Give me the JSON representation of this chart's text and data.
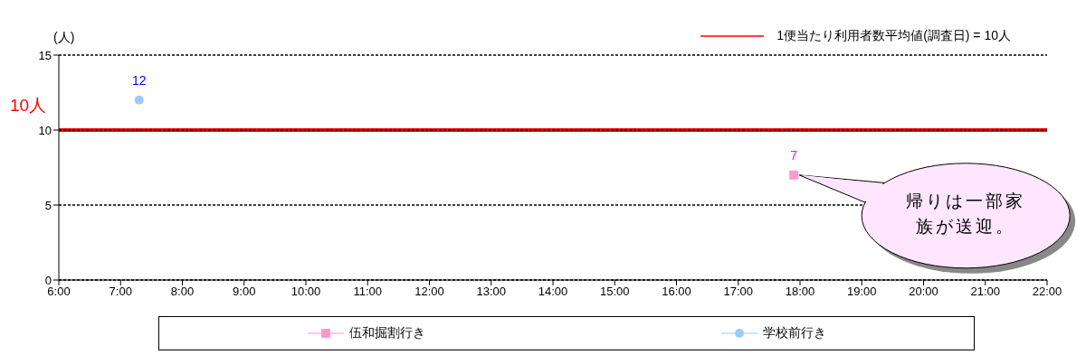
{
  "chart_data": {
    "type": "scatter",
    "ylabel": "(人)",
    "xlim": [
      6,
      22
    ],
    "xticks": [
      {
        "value": 6,
        "label": "6:00"
      },
      {
        "value": 7,
        "label": "7:00"
      },
      {
        "value": 8,
        "label": "8:00"
      },
      {
        "value": 9,
        "label": "9:00"
      },
      {
        "value": 10,
        "label": "10:00"
      },
      {
        "value": 11,
        "label": "11:00"
      },
      {
        "value": 12,
        "label": "12:00"
      },
      {
        "value": 13,
        "label": "13:00"
      },
      {
        "value": 14,
        "label": "14:00"
      },
      {
        "value": 15,
        "label": "15:00"
      },
      {
        "value": 16,
        "label": "16:00"
      },
      {
        "value": 17,
        "label": "17:00"
      },
      {
        "value": 18,
        "label": "18:00"
      },
      {
        "value": 19,
        "label": "19:00"
      },
      {
        "value": 20,
        "label": "20:00"
      },
      {
        "value": 21,
        "label": "21:00"
      },
      {
        "value": 22,
        "label": "22:00"
      }
    ],
    "ylim": [
      0,
      15
    ],
    "yticks": [
      0,
      5,
      10,
      15
    ],
    "grid": "y",
    "legend": "bottom",
    "data_labels": true,
    "series": [
      {
        "name": "伍和掘割行き",
        "color": "#ff99cc",
        "marker": "square",
        "x": [
          17.9
        ],
        "values": [
          7
        ]
      },
      {
        "name": "学校前行き",
        "color": "#99ccff",
        "marker": "circle",
        "x": [
          7.3
        ],
        "values": [
          12
        ]
      }
    ],
    "ref_lines": [
      {
        "axis": "y",
        "value": 10,
        "label": "1便当たり利用者数平均値(調査日) = 10人",
        "color": "#ff0000"
      }
    ],
    "annotations": [
      "10人",
      {
        "text": "帰りは一部家族が送迎。",
        "x": 17.9,
        "y": 7
      }
    ]
  }
}
